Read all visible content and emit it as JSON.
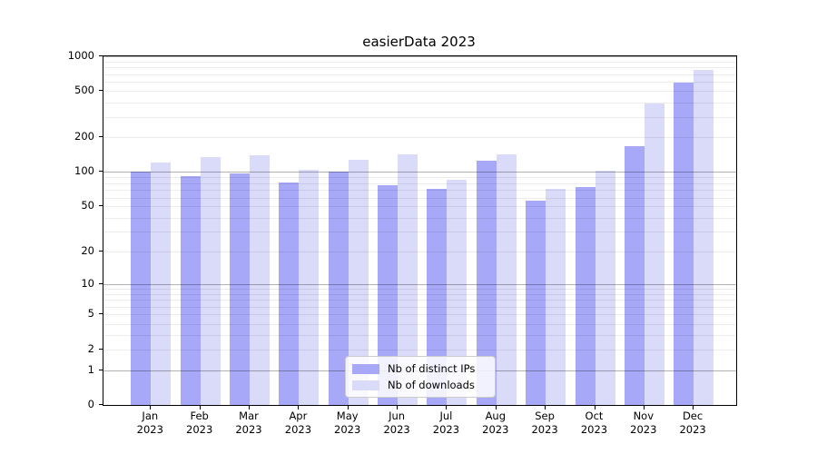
{
  "title": "easierData 2023",
  "chart_data": {
    "type": "bar",
    "title": "easierData 2023",
    "categories": [
      "Jan",
      "Feb",
      "Mar",
      "Apr",
      "May",
      "Jun",
      "Jul",
      "Aug",
      "Sep",
      "Oct",
      "Nov",
      "Dec"
    ],
    "year": "2023",
    "series": [
      {
        "name": "Nb of distinct IPs",
        "color": "#a8a8f8",
        "values": [
          100,
          92,
          98,
          81,
          100,
          77,
          72,
          126,
          56,
          74,
          168,
          592
        ]
      },
      {
        "name": "Nb of downloads",
        "color": "#dadaf9",
        "values": [
          122,
          136,
          140,
          104,
          128,
          142,
          86,
          143,
          71,
          103,
          394,
          758
        ]
      }
    ],
    "xlabel": "",
    "ylabel": "",
    "yscale": "log10(value+1)",
    "yticks": [
      0,
      1,
      2,
      5,
      10,
      20,
      50,
      100,
      200,
      500,
      1000
    ],
    "ylim": [
      0,
      1000
    ],
    "grid": "on (major gray at 1,10,100,1000; faint log minors)",
    "legend_position": "lower center"
  },
  "colors": {
    "series_distinct_ips": "#a8a8f8",
    "series_downloads": "#dadaf9",
    "major_grid": "#b3b3b3",
    "minor_grid": "#ebebeb",
    "spine": "#000000",
    "background": "#ffffff"
  }
}
